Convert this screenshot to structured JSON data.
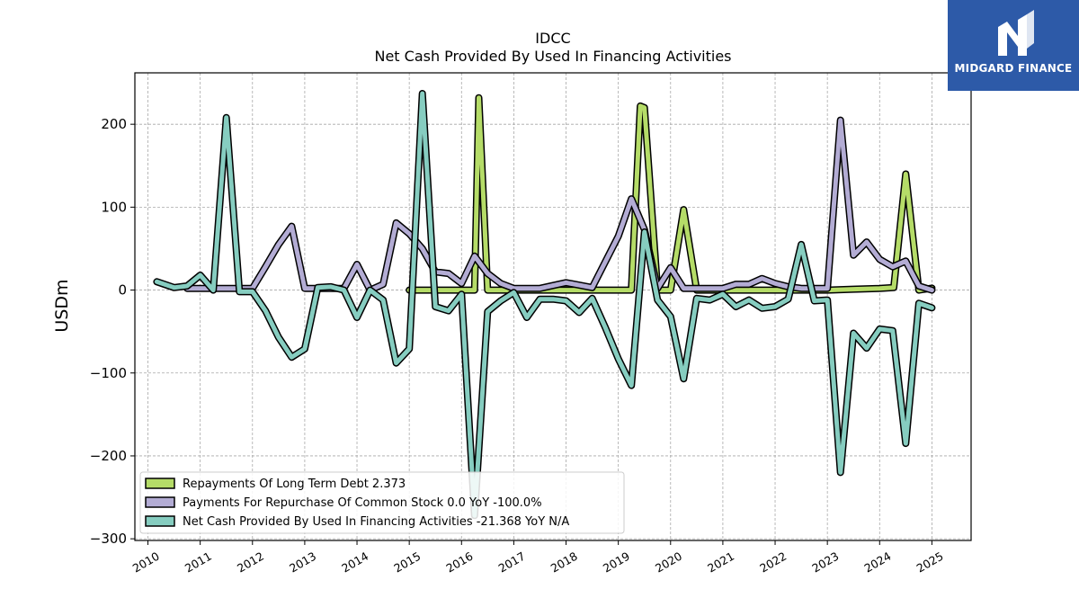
{
  "brand": {
    "name": "MIDGARD FINANCE",
    "bg_color": "#2d5aa8"
  },
  "chart_data": {
    "type": "line",
    "title": "IDCC",
    "subtitle": "Net Cash Provided By Used In Financing Activities",
    "ylabel": "USDm",
    "xlabel": "",
    "ylim": [
      -302,
      262
    ],
    "xlim": [
      2009.75,
      2025.75
    ],
    "yticks": [
      -300,
      -200,
      -100,
      0,
      100,
      200
    ],
    "xticks": [
      2010,
      2011,
      2012,
      2013,
      2014,
      2015,
      2016,
      2017,
      2018,
      2019,
      2020,
      2021,
      2022,
      2023,
      2024,
      2025
    ],
    "grid": true,
    "legend_position": "lower-left",
    "series": [
      {
        "name": "Repayments Of Long Term Debt  2.373",
        "color": "#b5dc68",
        "points": [
          [
            2015.0,
            0
          ],
          [
            2015.5,
            0
          ],
          [
            2016.0,
            0
          ],
          [
            2016.25,
            0
          ],
          [
            2016.33,
            232
          ],
          [
            2016.5,
            0
          ],
          [
            2017.0,
            0
          ],
          [
            2017.5,
            0
          ],
          [
            2018.0,
            0
          ],
          [
            2018.5,
            0
          ],
          [
            2019.0,
            0
          ],
          [
            2019.25,
            0
          ],
          [
            2019.42,
            222
          ],
          [
            2019.5,
            220
          ],
          [
            2019.75,
            0
          ],
          [
            2020.0,
            0
          ],
          [
            2020.25,
            97
          ],
          [
            2020.5,
            0
          ],
          [
            2021.0,
            0
          ],
          [
            2021.5,
            0
          ],
          [
            2022.0,
            0
          ],
          [
            2022.5,
            0
          ],
          [
            2023.0,
            0
          ],
          [
            2023.5,
            1
          ],
          [
            2024.0,
            2
          ],
          [
            2024.27,
            3
          ],
          [
            2024.5,
            140
          ],
          [
            2024.75,
            0
          ],
          [
            2025.0,
            2.373
          ]
        ]
      },
      {
        "name": "Payments For Repurchase Of Common Stock  0.0 YoY -100.0%",
        "color": "#b3acd4",
        "points": [
          [
            2010.75,
            2
          ],
          [
            2011.0,
            2
          ],
          [
            2011.25,
            2
          ],
          [
            2011.5,
            2
          ],
          [
            2011.75,
            2
          ],
          [
            2012.0,
            2
          ],
          [
            2012.25,
            28
          ],
          [
            2012.5,
            55
          ],
          [
            2012.75,
            77
          ],
          [
            2013.0,
            2
          ],
          [
            2013.25,
            2
          ],
          [
            2013.5,
            2
          ],
          [
            2013.75,
            2
          ],
          [
            2014.0,
            31
          ],
          [
            2014.25,
            0
          ],
          [
            2014.5,
            7
          ],
          [
            2014.75,
            81
          ],
          [
            2015.0,
            68
          ],
          [
            2015.25,
            50
          ],
          [
            2015.5,
            22
          ],
          [
            2015.75,
            20
          ],
          [
            2016.0,
            8
          ],
          [
            2016.25,
            41
          ],
          [
            2016.5,
            20
          ],
          [
            2016.75,
            8
          ],
          [
            2017.0,
            2
          ],
          [
            2017.5,
            2
          ],
          [
            2018.0,
            9
          ],
          [
            2018.5,
            3
          ],
          [
            2019.0,
            65
          ],
          [
            2019.25,
            110
          ],
          [
            2019.5,
            73
          ],
          [
            2019.75,
            2
          ],
          [
            2020.0,
            27
          ],
          [
            2020.25,
            2
          ],
          [
            2020.5,
            2
          ],
          [
            2020.75,
            2
          ],
          [
            2021.0,
            2
          ],
          [
            2021.25,
            7
          ],
          [
            2021.5,
            7
          ],
          [
            2021.75,
            14
          ],
          [
            2022.0,
            8
          ],
          [
            2022.25,
            4
          ],
          [
            2022.5,
            2
          ],
          [
            2022.75,
            2
          ],
          [
            2023.0,
            2
          ],
          [
            2023.25,
            205
          ],
          [
            2023.5,
            42
          ],
          [
            2023.75,
            58
          ],
          [
            2024.0,
            37
          ],
          [
            2024.25,
            28
          ],
          [
            2024.5,
            35
          ],
          [
            2024.75,
            5
          ],
          [
            2025.0,
            0.0
          ]
        ]
      },
      {
        "name": "Net Cash Provided By Used In Financing Activities  -21.368 YoY N/A",
        "color": "#86cdc0",
        "points": [
          [
            2010.17,
            10
          ],
          [
            2010.5,
            3
          ],
          [
            2010.75,
            5
          ],
          [
            2011.0,
            18
          ],
          [
            2011.25,
            0
          ],
          [
            2011.5,
            208
          ],
          [
            2011.75,
            -2
          ],
          [
            2012.0,
            -2
          ],
          [
            2012.25,
            -25
          ],
          [
            2012.5,
            -57
          ],
          [
            2012.75,
            -81
          ],
          [
            2013.0,
            -71
          ],
          [
            2013.25,
            3
          ],
          [
            2013.5,
            4
          ],
          [
            2013.75,
            0
          ],
          [
            2014.0,
            -33
          ],
          [
            2014.25,
            0
          ],
          [
            2014.5,
            -12
          ],
          [
            2014.75,
            -88
          ],
          [
            2015.0,
            -71
          ],
          [
            2015.25,
            237
          ],
          [
            2015.5,
            -20
          ],
          [
            2015.75,
            -25
          ],
          [
            2016.0,
            -5
          ],
          [
            2016.25,
            -272
          ],
          [
            2016.5,
            -26
          ],
          [
            2016.75,
            -13
          ],
          [
            2017.0,
            -3
          ],
          [
            2017.25,
            -33
          ],
          [
            2017.5,
            -11
          ],
          [
            2017.75,
            -11
          ],
          [
            2018.0,
            -13
          ],
          [
            2018.25,
            -27
          ],
          [
            2018.5,
            -10
          ],
          [
            2018.75,
            -45
          ],
          [
            2019.0,
            -83
          ],
          [
            2019.25,
            -115
          ],
          [
            2019.5,
            70
          ],
          [
            2019.75,
            -12
          ],
          [
            2020.0,
            -32
          ],
          [
            2020.25,
            -107
          ],
          [
            2020.5,
            -10
          ],
          [
            2020.75,
            -12
          ],
          [
            2021.0,
            -5
          ],
          [
            2021.25,
            -20
          ],
          [
            2021.5,
            -12
          ],
          [
            2021.75,
            -22
          ],
          [
            2022.0,
            -20
          ],
          [
            2022.25,
            -11
          ],
          [
            2022.5,
            55
          ],
          [
            2022.75,
            -13
          ],
          [
            2023.0,
            -12
          ],
          [
            2023.25,
            -220
          ],
          [
            2023.5,
            -52
          ],
          [
            2023.75,
            -70
          ],
          [
            2024.0,
            -47
          ],
          [
            2024.25,
            -49
          ],
          [
            2024.5,
            -185
          ],
          [
            2024.75,
            -16
          ],
          [
            2025.0,
            -21.368
          ]
        ]
      }
    ]
  }
}
